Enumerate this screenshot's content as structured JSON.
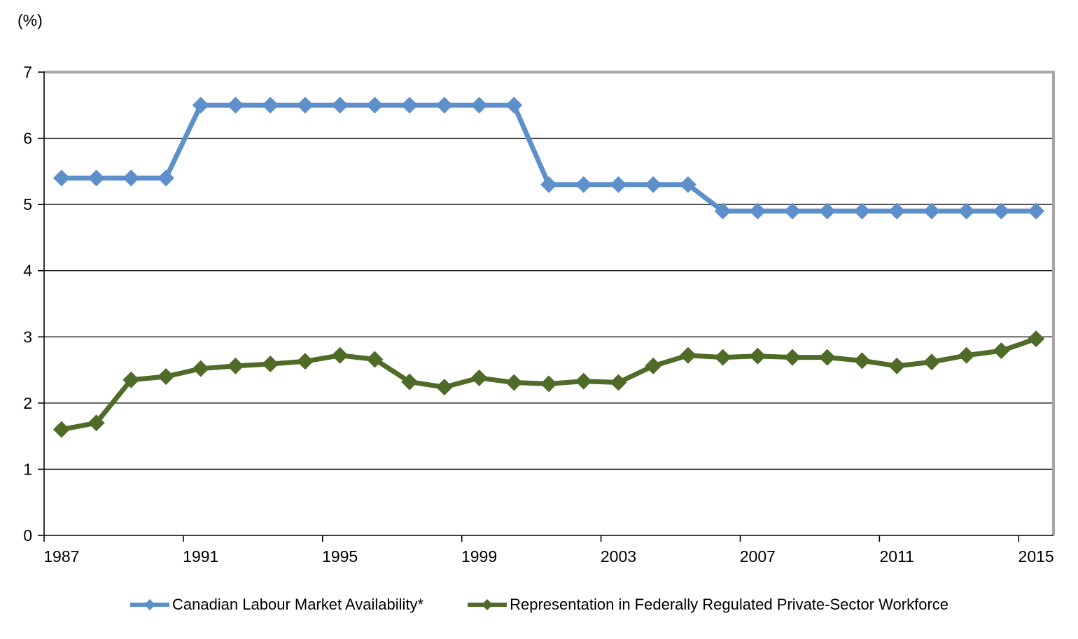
{
  "chart_data": {
    "type": "line",
    "title": "",
    "unit_label": "(%)",
    "xlabel": "",
    "ylabel": "(%)",
    "x": [
      1987,
      1988,
      1989,
      1990,
      1991,
      1992,
      1993,
      1994,
      1995,
      1996,
      1997,
      1998,
      1999,
      2000,
      2001,
      2002,
      2003,
      2004,
      2005,
      2006,
      2007,
      2008,
      2009,
      2010,
      2011,
      2012,
      2013,
      2014,
      2015
    ],
    "x_tick_labels": [
      "1987",
      "1991",
      "1995",
      "1999",
      "2003",
      "2007",
      "2011",
      "2015"
    ],
    "y_ticks": [
      0,
      1,
      2,
      3,
      4,
      5,
      6,
      7
    ],
    "ylim": [
      0,
      7
    ],
    "grid": "horizontal-only",
    "legend_position": "bottom-center",
    "colors": {
      "gridline": "#000000",
      "axis": "#000000",
      "text": "#000000",
      "plot_border": "#a6a6a6"
    },
    "series": [
      {
        "name": "Canadian Labour Market Availability*",
        "color": "#5d8fca",
        "marker": "diamond",
        "values": [
          5.4,
          5.4,
          5.4,
          5.4,
          6.5,
          6.5,
          6.5,
          6.5,
          6.5,
          6.5,
          6.5,
          6.5,
          6.5,
          6.5,
          5.3,
          5.3,
          5.3,
          5.3,
          5.3,
          4.9,
          4.9,
          4.9,
          4.9,
          4.9,
          4.9,
          4.9,
          4.9,
          4.9,
          4.9
        ]
      },
      {
        "name": "Representation in Federally Regulated Private-Sector Workforce",
        "color": "#4f6b28",
        "marker": "diamond",
        "values": [
          1.6,
          1.7,
          2.35,
          2.4,
          2.52,
          2.56,
          2.59,
          2.63,
          2.72,
          2.66,
          2.32,
          2.24,
          2.38,
          2.31,
          2.29,
          2.33,
          2.31,
          2.56,
          2.72,
          2.69,
          2.71,
          2.69,
          2.69,
          2.64,
          2.56,
          2.62,
          2.72,
          2.79,
          2.97
        ]
      }
    ]
  }
}
